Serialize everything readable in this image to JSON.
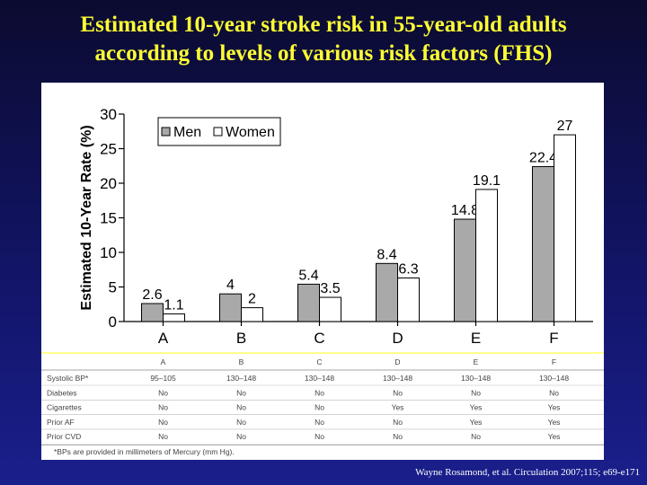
{
  "title_line1": "Estimated 10-year stroke risk in 55-year-old adults",
  "title_line2": "according to levels of various risk factors (FHS)",
  "citation": "Wayne Rosamond, et al. Circulation 2007;115; e69-e171",
  "colors": {
    "background": "#121466",
    "title": "#ffff33",
    "men": "#a9a9a9",
    "women": "#ffffff",
    "separator": "#ffff66"
  },
  "chart_data": {
    "type": "bar",
    "categories": [
      "A",
      "B",
      "C",
      "D",
      "E",
      "F"
    ],
    "series": [
      {
        "name": "Men",
        "values": [
          2.6,
          4,
          5.4,
          8.4,
          14.8,
          22.4
        ],
        "labels": [
          "2.6",
          "4",
          "5.4",
          "8.4",
          "14.8",
          "22.4"
        ]
      },
      {
        "name": "Women",
        "values": [
          1.1,
          2,
          3.5,
          6.3,
          19.1,
          27
        ],
        "labels": [
          "1.1",
          "2",
          "3.5",
          "6.3",
          "19.1",
          "27"
        ]
      }
    ],
    "ylabel": "Estimated 10-Year Rate (%)",
    "xlabel": "",
    "ylim": [
      0,
      30
    ],
    "yticks": [
      "0",
      "5",
      "10",
      "15",
      "20",
      "25",
      "30"
    ],
    "legend_position": "top-left",
    "grid": false
  },
  "risk_table": {
    "columns": [
      "A",
      "B",
      "C",
      "D",
      "E",
      "F"
    ],
    "rows": [
      {
        "label": "Systolic BP*",
        "values": [
          "95–105",
          "130–148",
          "130–148",
          "130–148",
          "130–148",
          "130–148"
        ]
      },
      {
        "label": "Diabetes",
        "values": [
          "No",
          "No",
          "No",
          "No",
          "No",
          "No"
        ]
      },
      {
        "label": "Cigarettes",
        "values": [
          "No",
          "No",
          "No",
          "Yes",
          "Yes",
          "Yes"
        ]
      },
      {
        "label": "Prior AF",
        "values": [
          "No",
          "No",
          "No",
          "No",
          "Yes",
          "Yes"
        ]
      },
      {
        "label": "Prior CVD",
        "values": [
          "No",
          "No",
          "No",
          "No",
          "No",
          "Yes"
        ]
      }
    ],
    "footnote": "*BPs are provided in millimeters of Mercury (mm Hg)."
  }
}
